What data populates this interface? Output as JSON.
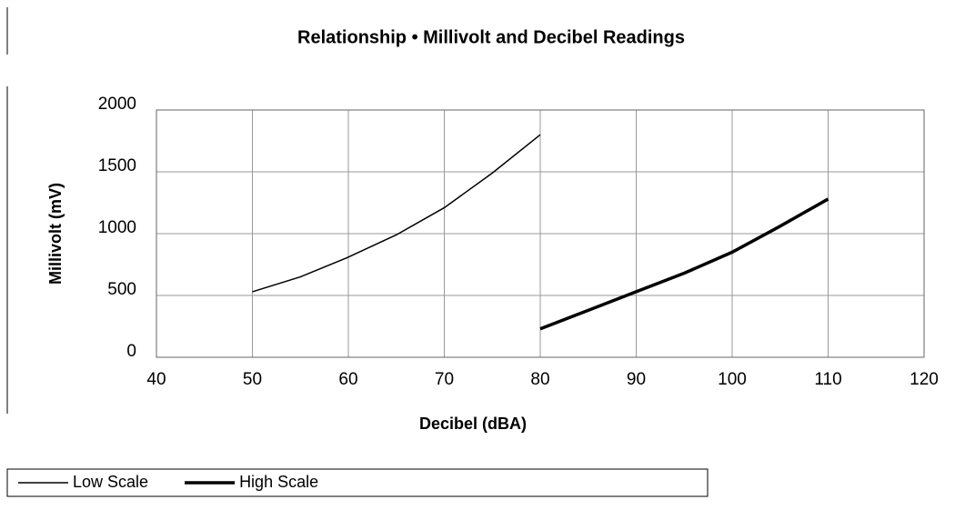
{
  "chart_data": {
    "type": "line",
    "title": "Relationship • Millivolt and Decibel Readings",
    "x_label": "Decibel (dBA)",
    "y_label": "Millivolt (mV)",
    "series": [
      {
        "name": "Low Scale",
        "color": "#000000",
        "line_width": 1.5,
        "x": [
          50,
          55,
          60,
          65,
          70,
          75,
          80
        ],
        "values": [
          530,
          650,
          810,
          990,
          1210,
          1490,
          1800
        ]
      },
      {
        "name": "High Scale",
        "color": "#000000",
        "line_width": 3.5,
        "x": [
          80,
          85,
          90,
          95,
          100,
          105,
          110
        ],
        "values": [
          230,
          380,
          530,
          680,
          850,
          1060,
          1280
        ]
      }
    ],
    "xlim": [
      40,
      120
    ],
    "xticks": [
      40,
      50,
      60,
      70,
      80,
      90,
      100,
      110,
      120
    ],
    "ylim": [
      0,
      2000
    ],
    "yticks": [
      0,
      500,
      1000,
      1500,
      2000
    ],
    "grid": true,
    "legend": "bottom-left"
  }
}
